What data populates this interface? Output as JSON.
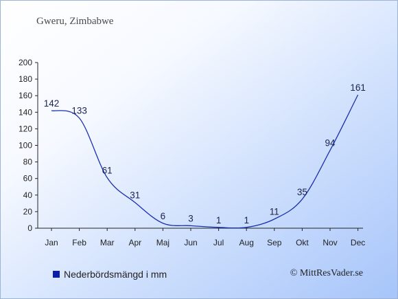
{
  "chart_data": {
    "type": "line",
    "title": "Gweru, Zimbabwe",
    "categories": [
      "Jan",
      "Feb",
      "Mar",
      "Apr",
      "Maj",
      "Jun",
      "Jul",
      "Aug",
      "Sep",
      "Okt",
      "Nov",
      "Dec"
    ],
    "series": [
      {
        "name": "Nederbördsmängd i mm",
        "values": [
          142,
          133,
          61,
          31,
          6,
          3,
          1,
          1,
          11,
          35,
          94,
          161
        ]
      }
    ],
    "ylim": [
      0,
      200
    ],
    "yticks": [
      0,
      20,
      40,
      60,
      80,
      100,
      120,
      140,
      160,
      180,
      200
    ],
    "grid": false,
    "legend": "bottom-left",
    "line_color": "#1a2fb0"
  },
  "copyright": "© MittResVader.se"
}
